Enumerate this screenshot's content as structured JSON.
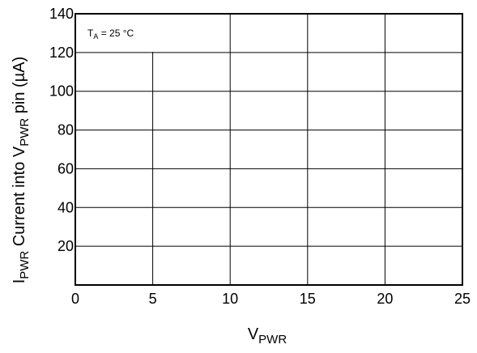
{
  "chart_data": {
    "type": "line",
    "xlabel": {
      "main": "V",
      "sub": "PWR"
    },
    "ylabel": {
      "p1": "I",
      "sub1": "PWR",
      "p2": " Current into V",
      "sub2": "PWR",
      "p3": " pin (µA)"
    },
    "annotation": {
      "main": "T",
      "sub": "A",
      "rest": " = 25 °C"
    },
    "xlim": [
      0,
      25
    ],
    "ylim": [
      0,
      140
    ],
    "xticks": [
      0,
      5,
      10,
      15,
      20,
      25
    ],
    "yticks": [
      20,
      40,
      60,
      80,
      100,
      120,
      140
    ],
    "grid": true,
    "series": []
  }
}
